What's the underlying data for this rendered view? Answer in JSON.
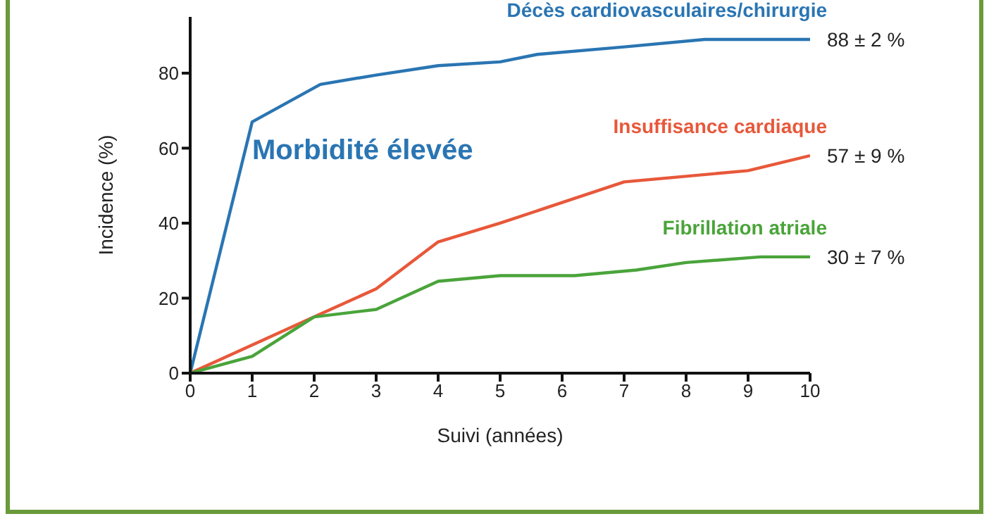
{
  "chart_data": {
    "type": "line",
    "xlabel": "Suivi (années)",
    "ylabel": "Incidence (%)",
    "xlim": [
      0,
      10
    ],
    "xticks": [
      0,
      1,
      2,
      3,
      4,
      5,
      6,
      7,
      8,
      9,
      10
    ],
    "ylim": [
      0,
      95
    ],
    "yticks": [
      0,
      20,
      40,
      60,
      80
    ],
    "grid": false,
    "legend": false,
    "marker": "none",
    "line_style": "solid",
    "series": [
      {
        "name": "Décès cardiovasculaires/chirurgie",
        "color": "#2a75b3",
        "x": [
          0,
          1,
          2.1,
          3,
          4,
          5,
          5.6,
          7,
          8.3,
          10
        ],
        "values": [
          0,
          67,
          77,
          79.5,
          82,
          83,
          85,
          87,
          89,
          89
        ]
      },
      {
        "name": "Insuffisance cardiaque",
        "color": "#e8583a",
        "x": [
          0,
          1,
          2,
          3,
          4,
          5,
          6,
          7,
          8,
          9,
          10
        ],
        "values": [
          0,
          7.5,
          15,
          22.5,
          35,
          40,
          45.5,
          51,
          52.5,
          54,
          58
        ]
      },
      {
        "name": "Fibrillation atriale",
        "color": "#4aa43a",
        "x": [
          0,
          1,
          2,
          3,
          4,
          5,
          6.2,
          7.2,
          8,
          9.2,
          10
        ],
        "values": [
          0,
          4.5,
          15,
          17,
          24.5,
          26,
          26,
          27.5,
          29.5,
          31,
          31
        ]
      }
    ],
    "annotations": [
      "Morbidité élevée",
      "88 ± 2 %",
      "57 ± 9 %",
      "30 ± 7 %"
    ]
  }
}
